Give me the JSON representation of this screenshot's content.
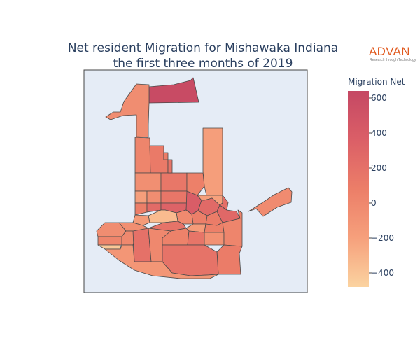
{
  "title": {
    "line1": "Net resident Migration for Mishawaka Indiana",
    "line2": "the first three months of 2019"
  },
  "logo": {
    "name": "ADVAN",
    "tagline": "Research through Technology"
  },
  "colorbar": {
    "title": "Migration Net",
    "ticks": [
      {
        "value": 600,
        "label": "600"
      },
      {
        "value": 400,
        "label": "400"
      },
      {
        "value": 200,
        "label": "200"
      },
      {
        "value": 0,
        "label": "0"
      },
      {
        "value": -200,
        "label": "−200"
      },
      {
        "value": -400,
        "label": "−400"
      }
    ],
    "min": -480,
    "max": 640,
    "colorscale": [
      "#fbd3a0",
      "#f6a07c",
      "#ec7e68",
      "#db5f67",
      "#c54864"
    ]
  },
  "chart_data": {
    "type": "choropleth",
    "colorscale_name": "orange-red",
    "background": "#e5ecf6",
    "regions": [
      {
        "id": "r01",
        "value": 600
      },
      {
        "id": "r02",
        "value": -40
      },
      {
        "id": "r03",
        "value": -180
      },
      {
        "id": "r04",
        "value": 20
      },
      {
        "id": "r05",
        "value": 120
      },
      {
        "id": "r06",
        "value": 90
      },
      {
        "id": "r07",
        "value": -60
      },
      {
        "id": "r08",
        "value": 140
      },
      {
        "id": "r09",
        "value": 60
      },
      {
        "id": "r10",
        "value": -180
      },
      {
        "id": "r11",
        "value": -40
      },
      {
        "id": "r12",
        "value": 80
      },
      {
        "id": "r13",
        "value": 250
      },
      {
        "id": "r14",
        "value": 150
      },
      {
        "id": "r15",
        "value": 320
      },
      {
        "id": "r16",
        "value": 380
      },
      {
        "id": "r17",
        "value": -200
      },
      {
        "id": "r18",
        "value": 260
      },
      {
        "id": "r19",
        "value": 220
      },
      {
        "id": "r20",
        "value": 280
      },
      {
        "id": "r21",
        "value": 100
      },
      {
        "id": "r22",
        "value": 70
      },
      {
        "id": "r23",
        "value": -20
      },
      {
        "id": "r24",
        "value": -350
      },
      {
        "id": "r25",
        "value": -150
      },
      {
        "id": "r26",
        "value": -60
      },
      {
        "id": "r27",
        "value": 180
      },
      {
        "id": "r28",
        "value": -160
      },
      {
        "id": "r29",
        "value": 60
      },
      {
        "id": "r30",
        "value": -40
      },
      {
        "id": "r31",
        "value": 0
      },
      {
        "id": "r32",
        "value": 20
      },
      {
        "id": "r33",
        "value": 200
      },
      {
        "id": "r34",
        "value": -420
      },
      {
        "id": "r35",
        "value": 0
      },
      {
        "id": "r36",
        "value": 50
      },
      {
        "id": "r37",
        "value": 160
      },
      {
        "id": "r38",
        "value": -80
      },
      {
        "id": "r39",
        "value": 20
      },
      {
        "id": "r40",
        "value": 100
      },
      {
        "id": "r41",
        "value": 180
      },
      {
        "id": "r42",
        "value": -120
      },
      {
        "id": "r43",
        "value": -30
      },
      {
        "id": "r44",
        "value": 160
      }
    ]
  }
}
